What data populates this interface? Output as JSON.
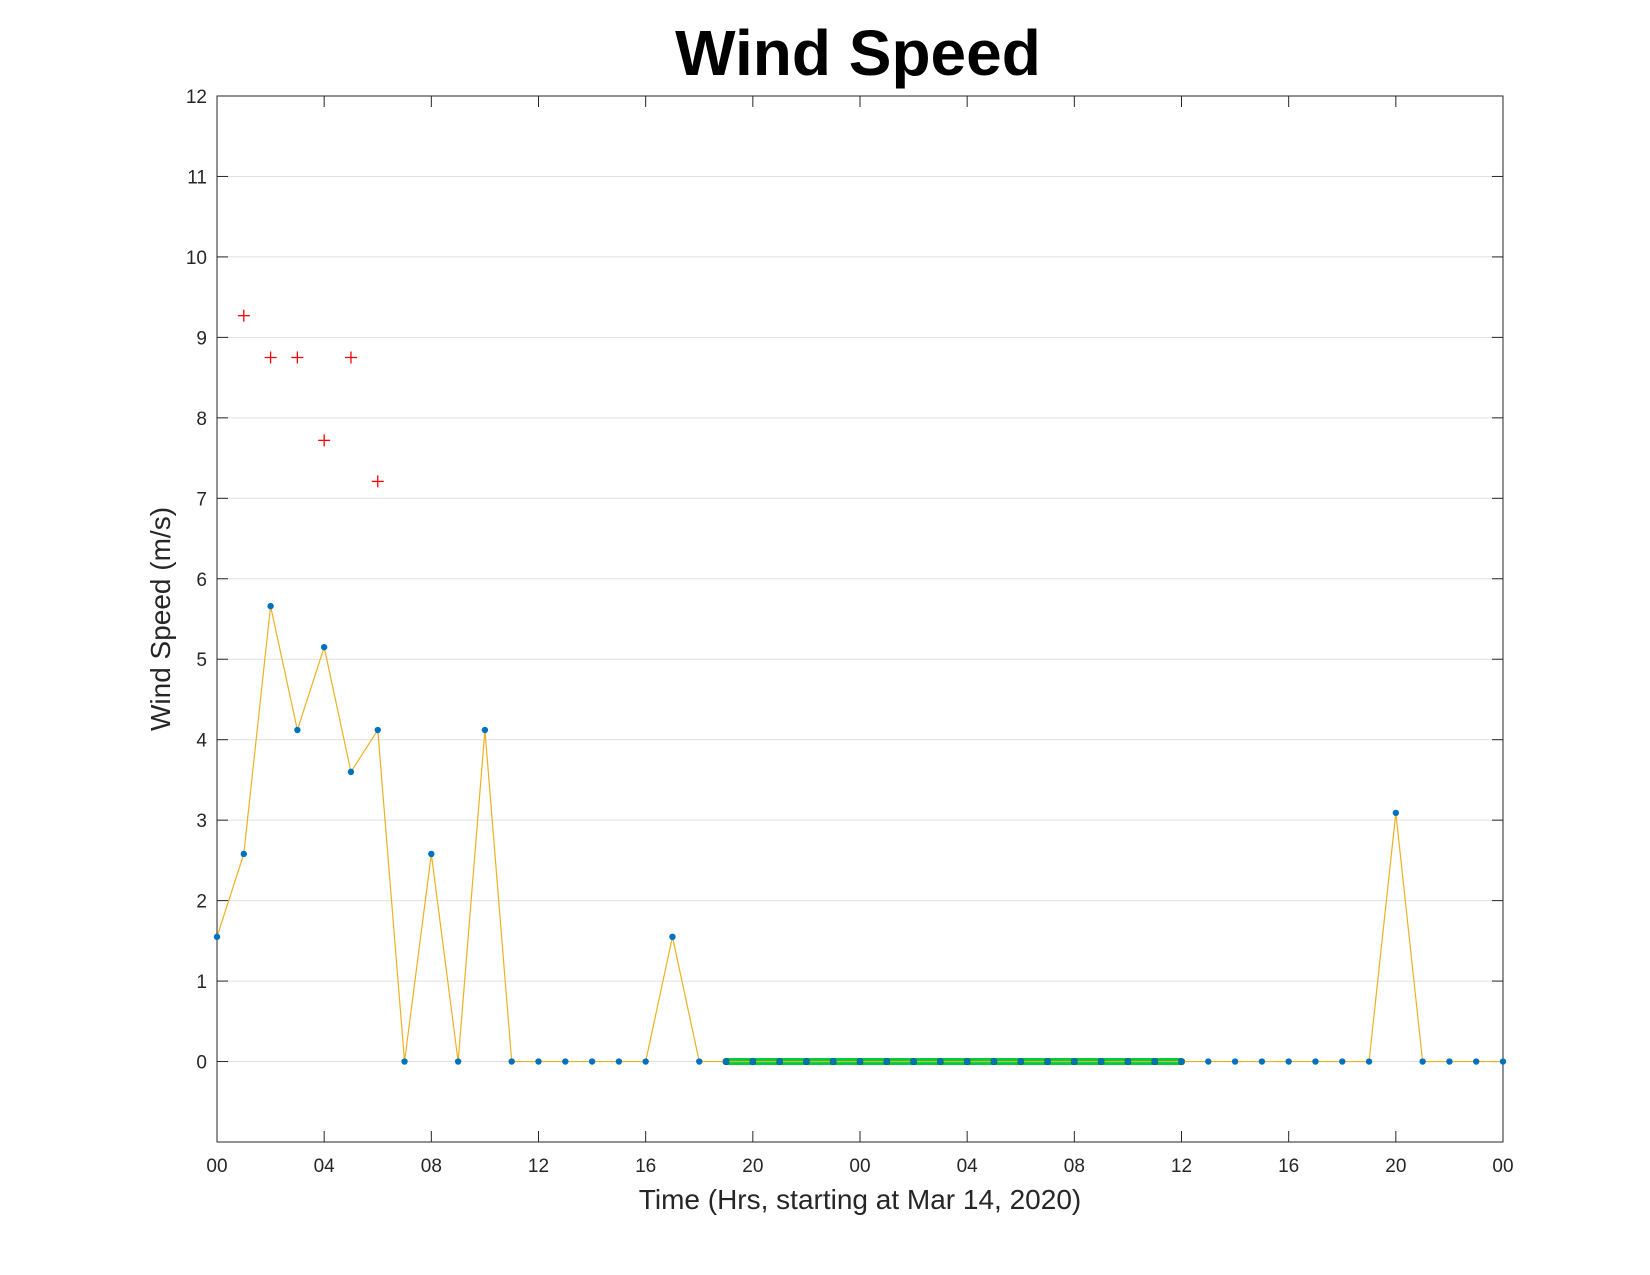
{
  "chart_data": {
    "type": "line",
    "title": "Wind Speed",
    "xlabel": "Time (Hrs, starting at Mar 14, 2020)",
    "ylabel": "Wind Speed (m/s)",
    "xlim": [
      0,
      48
    ],
    "ylim": [
      -1,
      12
    ],
    "x_tick_labels": [
      "00",
      "04",
      "08",
      "12",
      "16",
      "20",
      "00",
      "04",
      "08",
      "12",
      "16",
      "20",
      "00"
    ],
    "y_ticks": [
      0,
      1,
      2,
      3,
      4,
      5,
      6,
      7,
      8,
      9,
      10,
      11,
      12
    ],
    "grid": "horizontal",
    "colors": {
      "line": "#EDB120",
      "marker": "#0072BD",
      "gust": "#FF0000",
      "calm_band": "#00CC44",
      "calm_marker": "#006600"
    },
    "series": [
      {
        "type": "line",
        "marker": "dot",
        "x": [
          0,
          1,
          2,
          3,
          4,
          5,
          6,
          7,
          8,
          9,
          10,
          11,
          12,
          13,
          14,
          15,
          16,
          17,
          18,
          19,
          20,
          21,
          22,
          23,
          24,
          25,
          26,
          27,
          28,
          29,
          30,
          31,
          32,
          33,
          34,
          35,
          36,
          37,
          38,
          39,
          40,
          41,
          42,
          43,
          44,
          45,
          46,
          47,
          48
        ],
        "values": [
          1.55,
          2.58,
          5.66,
          4.12,
          5.15,
          3.6,
          4.12,
          0,
          2.58,
          0,
          4.12,
          0,
          0,
          0,
          0,
          0,
          0,
          1.55,
          0,
          0,
          0,
          0,
          0,
          0,
          0,
          0,
          0,
          0,
          0,
          0,
          0,
          0,
          0,
          0,
          0,
          0,
          0,
          0,
          0,
          0,
          0,
          0,
          0,
          0,
          3.09,
          0,
          0,
          0,
          0
        ]
      },
      {
        "type": "scatter",
        "marker": "plus",
        "x": [
          1,
          2,
          3,
          4,
          5,
          6
        ],
        "values": [
          9.27,
          8.75,
          8.75,
          7.72,
          8.75,
          7.21
        ]
      },
      {
        "type": "band",
        "marker": "dot",
        "x": [
          19,
          20,
          21,
          22,
          23,
          24,
          25,
          26,
          27,
          28,
          29,
          30,
          31,
          32,
          33,
          34,
          35,
          36
        ],
        "values": [
          0,
          0,
          0,
          0,
          0,
          0,
          0,
          0,
          0,
          0,
          0,
          0,
          0,
          0,
          0,
          0,
          0,
          0
        ]
      }
    ]
  }
}
